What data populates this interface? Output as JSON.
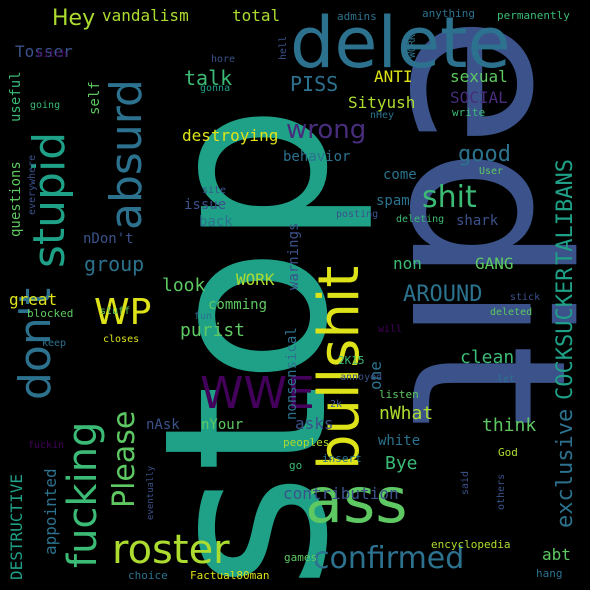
{
  "words": {
    "stop": "stop",
    "edit": "edit",
    "delete": "delete",
    "bullshit": "bullshit",
    "ass": "ass",
    "stupid": "stupid",
    "absurd": "absurd",
    "dont": "don't",
    "fucking": "fucking",
    "roster": "roster",
    "wwe": "WWE",
    "wp": "WP",
    "confirmed": "confirmed",
    "please": "Please",
    "shit": "shit",
    "wrong": "wrong",
    "hey": "Hey",
    "talk": "talk",
    "piss": "PISS",
    "tosser": "Tosser",
    "vandalism": "vandalism",
    "total": "total",
    "admins": "admins",
    "anything": "anything",
    "permanently": "permanently",
    "useful": "useful",
    "self": "self",
    "anti": "ANTI",
    "sexual": "sexual",
    "social": "SOCIAL",
    "sityush": "Sityush",
    "destroying": "destroying",
    "good": "good",
    "behavior": "behavior",
    "come": "come",
    "questions": "questions",
    "ndont": "nDon't",
    "issue": "issue",
    "back": "back",
    "spam": "spam",
    "shark": "shark",
    "talibans": "TALIBANS",
    "cocksucker": "COCKSUCKER",
    "exclusive": "exclusive",
    "group": "group",
    "work": "WORK",
    "gang": "GANG",
    "non": "non",
    "around": "AROUND",
    "look": "look",
    "comming": "comming",
    "purist": "purist",
    "great": "great",
    "blocked": "blocked",
    "stuff": "stuff",
    "fun": "fun",
    "closes": "closes",
    "keep": "keep",
    "nonsensical": "nonsensical",
    "warnings": "warnings",
    "one": "one",
    "clean": "clean",
    "nwhat": "nWhat",
    "think": "think",
    "white": "white",
    "bye": "Bye",
    "abt": "abt",
    "contribution": "contribution",
    "nask": "nAsk",
    "nyour": "nYour",
    "asks": "asks",
    "destructive": "DESTRUCTIVE",
    "appointed": "appointed",
    "peoples": "peoples",
    "insert": "insert",
    "go": "go",
    "god": "God",
    "said": "said",
    "others": "others",
    "eventually": "eventually",
    "fuckin": "fuckin",
    "encyclopedia": "encyclopedia",
    "games": "games",
    "choice": "choice",
    "factual80man": "Factual80man",
    "hang": "hang",
    "listen": "listen",
    "let": "let",
    "annoyed": "annoyed",
    "twok15": "2K15",
    "twok": "2k",
    "will": "will",
    "deleted": "deleted",
    "stick": "stick",
    "user": "User",
    "write": "write",
    "nhey": "nHey",
    "going": "going",
    "bitch": "bitch",
    "hore": "hore",
    "hell": "hell",
    "gonna": "gonna",
    "site": "site",
    "posting": "posting",
    "deleting": "deleting",
    "everywhere": "everywhere"
  },
  "palette": {
    "yellow": "#dde318",
    "lime": "#addc30",
    "green": "#5ec962",
    "mint": "#3bbb75",
    "teal": "#28ae80",
    "cyan": "#1fa188",
    "blue": "#2c728e",
    "slate": "#3b528b",
    "indigo": "#472d7b",
    "purple": "#44015b"
  }
}
